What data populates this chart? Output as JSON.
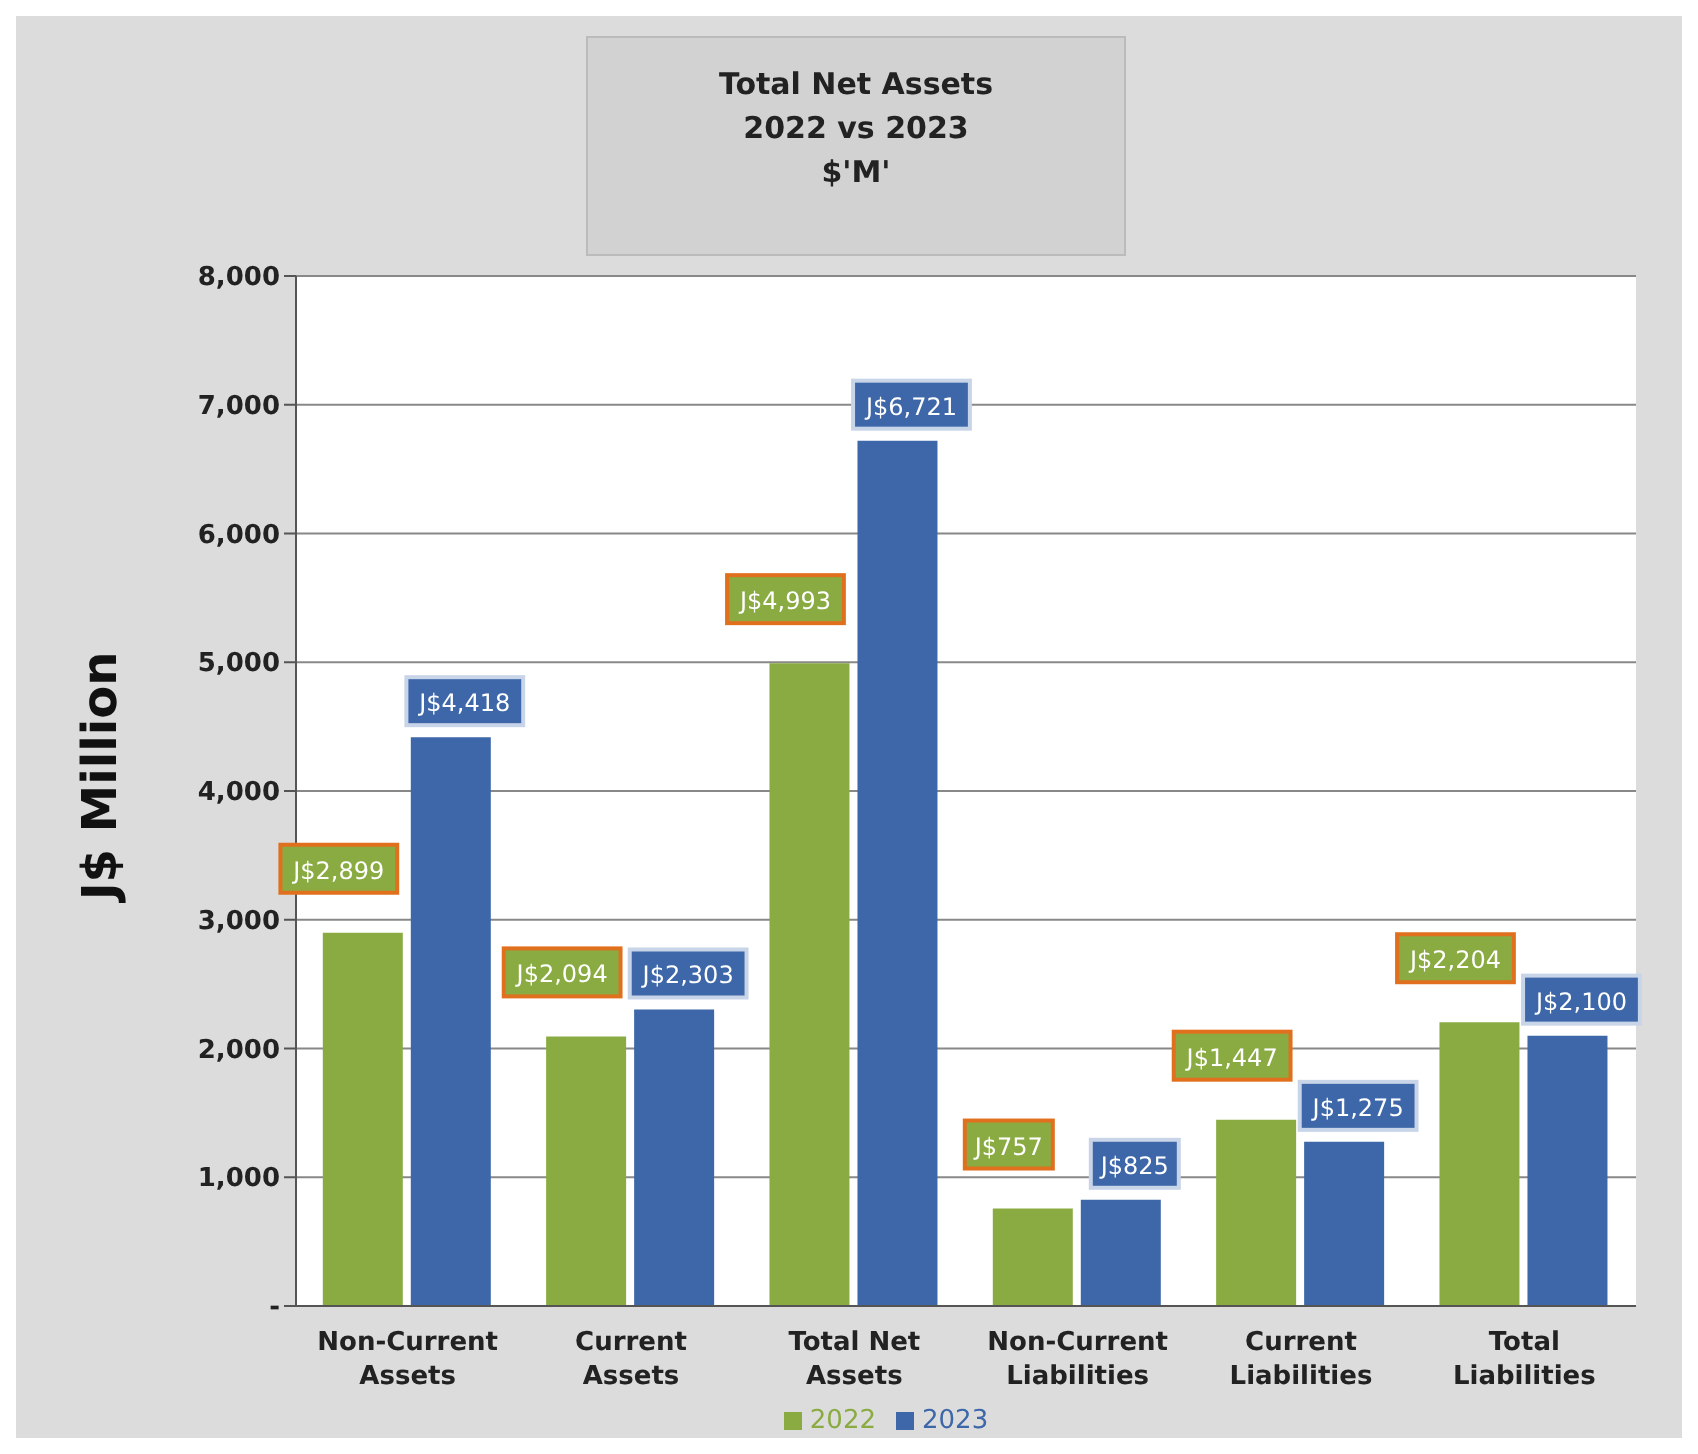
{
  "chart_data": {
    "type": "bar",
    "title": "Total Net Assets\n2022 vs 2023\n$'M'",
    "ylabel": "J$ Million",
    "categories": [
      "Non-Current Assets",
      "Current Assets",
      "Total Net Assets",
      "Non-Current Liabilities",
      "Current Liabilities",
      "Total Liabilities"
    ],
    "series": [
      {
        "name": "2022",
        "color": "#8aab42",
        "values": [
          2899,
          2094,
          4993,
          757,
          1447,
          2204
        ],
        "value_labels": [
          "J$2,899",
          "J$2,094",
          "J$4,993",
          "J$757",
          "J$1,447",
          "J$2,204"
        ]
      },
      {
        "name": "2023",
        "color": "#3d67a8",
        "values": [
          4418,
          2303,
          6721,
          825,
          1275,
          2100
        ],
        "value_labels": [
          "J$4,418",
          "J$2,303",
          "J$6,721",
          "J$825",
          "J$1,275",
          "J$2,100"
        ]
      }
    ],
    "ylim": [
      0,
      8000
    ],
    "yticks": [
      {
        "value": 0,
        "label": "-"
      },
      {
        "value": 1000,
        "label": "1,000"
      },
      {
        "value": 2000,
        "label": "2,000"
      },
      {
        "value": 3000,
        "label": "3,000"
      },
      {
        "value": 4000,
        "label": "4,000"
      },
      {
        "value": 5000,
        "label": "5,000"
      },
      {
        "value": 6000,
        "label": "6,000"
      },
      {
        "value": 7000,
        "label": "7,000"
      },
      {
        "value": 8000,
        "label": "8,000"
      }
    ],
    "grid": "y",
    "legend": "bottom"
  }
}
